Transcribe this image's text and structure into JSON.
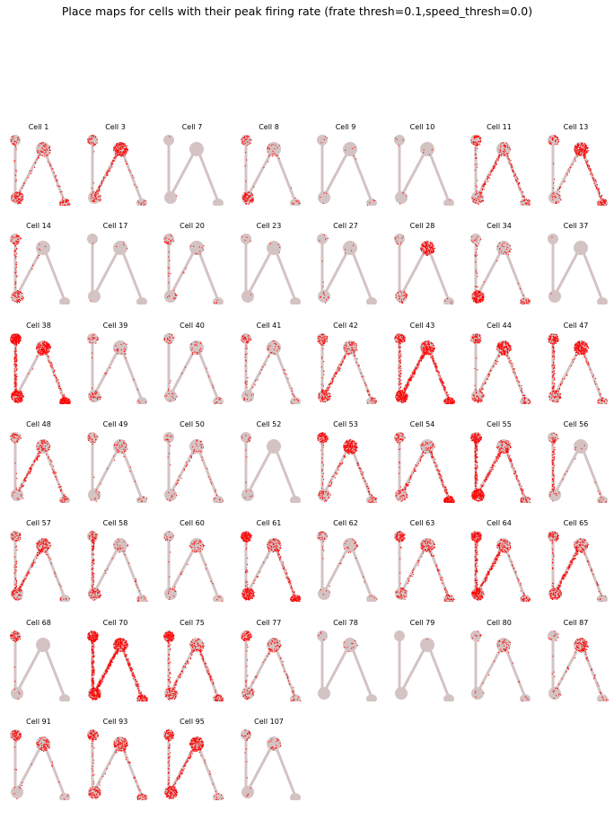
{
  "title": "Place maps for cells with their peak firing rate (frate thresh=0.1,speed_thresh=0.0)",
  "colors": {
    "track": "#d4c3c3",
    "spike": "#ff0000",
    "background": "#ffffff"
  },
  "chart_data": {
    "type": "scatter",
    "grid": false,
    "layout": {
      "rows": 7,
      "cols": 8
    },
    "panels": [
      {
        "title": "Cell 1",
        "intensity": {
          "left_top": 0.3,
          "left_arm": 0.2,
          "left_box": 0.6,
          "diag": 0.3,
          "top_box": 0.5,
          "right_arm": 0.3,
          "right_box": 0.5
        }
      },
      {
        "title": "Cell 3",
        "intensity": {
          "left_top": 0.4,
          "left_arm": 0.1,
          "left_box": 0.4,
          "diag": 0.6,
          "top_box": 0.9,
          "right_arm": 0.2,
          "right_box": 0.2
        }
      },
      {
        "title": "Cell 7",
        "intensity": {
          "left_top": 0.05,
          "left_arm": 0.0,
          "left_box": 0.05,
          "diag": 0.0,
          "top_box": 0.0,
          "right_arm": 0.0,
          "right_box": 0.0
        }
      },
      {
        "title": "Cell 8",
        "intensity": {
          "left_top": 0.4,
          "left_arm": 0.1,
          "left_box": 0.7,
          "diag": 0.1,
          "top_box": 0.3,
          "right_arm": 0.1,
          "right_box": 0.2
        }
      },
      {
        "title": "Cell 9",
        "intensity": {
          "left_top": 0.1,
          "left_arm": 0.0,
          "left_box": 0.1,
          "diag": 0.0,
          "top_box": 0.1,
          "right_arm": 0.05,
          "right_box": 0.1
        }
      },
      {
        "title": "Cell 10",
        "intensity": {
          "left_top": 0.1,
          "left_arm": 0.0,
          "left_box": 0.1,
          "diag": 0.0,
          "top_box": 0.1,
          "right_arm": 0.0,
          "right_box": 0.05
        }
      },
      {
        "title": "Cell 11",
        "intensity": {
          "left_top": 0.5,
          "left_arm": 0.3,
          "left_box": 0.4,
          "diag": 0.6,
          "top_box": 0.4,
          "right_arm": 0.5,
          "right_box": 0.3
        }
      },
      {
        "title": "Cell 13",
        "intensity": {
          "left_top": 0.4,
          "left_arm": 0.1,
          "left_box": 0.3,
          "diag": 0.3,
          "top_box": 0.9,
          "right_arm": 0.6,
          "right_box": 0.5
        }
      },
      {
        "title": "Cell 14",
        "intensity": {
          "left_top": 0.4,
          "left_arm": 0.4,
          "left_box": 0.5,
          "diag": 0.1,
          "top_box": 0.1,
          "right_arm": 0.0,
          "right_box": 0.0
        }
      },
      {
        "title": "Cell 17",
        "intensity": {
          "left_top": 0.05,
          "left_arm": 0.0,
          "left_box": 0.05,
          "diag": 0.0,
          "top_box": 0.1,
          "right_arm": 0.0,
          "right_box": 0.05
        }
      },
      {
        "title": "Cell 20",
        "intensity": {
          "left_top": 0.3,
          "left_arm": 0.2,
          "left_box": 0.2,
          "diag": 0.1,
          "top_box": 0.2,
          "right_arm": 0.0,
          "right_box": 0.1
        }
      },
      {
        "title": "Cell 23",
        "intensity": {
          "left_top": 0.1,
          "left_arm": 0.0,
          "left_box": 0.05,
          "diag": 0.0,
          "top_box": 0.1,
          "right_arm": 0.0,
          "right_box": 0.0
        }
      },
      {
        "title": "Cell 27",
        "intensity": {
          "left_top": 0.1,
          "left_arm": 0.1,
          "left_box": 0.2,
          "diag": 0.0,
          "top_box": 0.1,
          "right_arm": 0.0,
          "right_box": 0.0
        }
      },
      {
        "title": "Cell 28",
        "intensity": {
          "left_top": 0.2,
          "left_arm": 0.0,
          "left_box": 0.4,
          "diag": 0.0,
          "top_box": 0.9,
          "right_arm": 0.0,
          "right_box": 0.1
        }
      },
      {
        "title": "Cell 34",
        "intensity": {
          "left_top": 0.2,
          "left_arm": 0.3,
          "left_box": 0.9,
          "diag": 0.1,
          "top_box": 0.3,
          "right_arm": 0.1,
          "right_box": 0.4
        }
      },
      {
        "title": "Cell 37",
        "intensity": {
          "left_top": 0.05,
          "left_arm": 0.0,
          "left_box": 0.05,
          "diag": 0.0,
          "top_box": 0.0,
          "right_arm": 0.0,
          "right_box": 0.0
        }
      },
      {
        "title": "Cell 38",
        "intensity": {
          "left_top": 1.0,
          "left_arm": 0.8,
          "left_box": 1.0,
          "diag": 0.1,
          "top_box": 1.0,
          "right_arm": 0.5,
          "right_box": 1.0
        }
      },
      {
        "title": "Cell 39",
        "intensity": {
          "left_top": 0.3,
          "left_arm": 0.1,
          "left_box": 0.4,
          "diag": 0.1,
          "top_box": 0.3,
          "right_arm": 0.1,
          "right_box": 0.1
        }
      },
      {
        "title": "Cell 40",
        "intensity": {
          "left_top": 0.3,
          "left_arm": 0.1,
          "left_box": 0.2,
          "diag": 0.1,
          "top_box": 0.3,
          "right_arm": 0.1,
          "right_box": 0.2
        }
      },
      {
        "title": "Cell 41",
        "intensity": {
          "left_top": 0.4,
          "left_arm": 0.3,
          "left_box": 0.2,
          "diag": 0.2,
          "top_box": 0.3,
          "right_arm": 0.2,
          "right_box": 0.2
        }
      },
      {
        "title": "Cell 42",
        "intensity": {
          "left_top": 0.5,
          "left_arm": 0.3,
          "left_box": 0.6,
          "diag": 0.6,
          "top_box": 0.5,
          "right_arm": 0.3,
          "right_box": 0.3
        }
      },
      {
        "title": "Cell 43",
        "intensity": {
          "left_top": 0.6,
          "left_arm": 0.6,
          "left_box": 1.0,
          "diag": 0.9,
          "top_box": 0.9,
          "right_arm": 0.7,
          "right_box": 0.8
        }
      },
      {
        "title": "Cell 44",
        "intensity": {
          "left_top": 0.5,
          "left_arm": 0.2,
          "left_box": 0.5,
          "diag": 0.4,
          "top_box": 0.9,
          "right_arm": 0.4,
          "right_box": 0.4
        }
      },
      {
        "title": "Cell 47",
        "intensity": {
          "left_top": 0.6,
          "left_arm": 0.6,
          "left_box": 0.5,
          "diag": 0.3,
          "top_box": 1.0,
          "right_arm": 0.3,
          "right_box": 0.3
        }
      },
      {
        "title": "Cell 48",
        "intensity": {
          "left_top": 0.4,
          "left_arm": 0.1,
          "left_box": 0.2,
          "diag": 0.6,
          "top_box": 0.5,
          "right_arm": 0.4,
          "right_box": 0.3
        }
      },
      {
        "title": "Cell 49",
        "intensity": {
          "left_top": 0.3,
          "left_arm": 0.1,
          "left_box": 0.2,
          "diag": 0.1,
          "top_box": 0.4,
          "right_arm": 0.1,
          "right_box": 0.2
        }
      },
      {
        "title": "Cell 50",
        "intensity": {
          "left_top": 0.2,
          "left_arm": 0.1,
          "left_box": 0.2,
          "diag": 0.3,
          "top_box": 0.3,
          "right_arm": 0.2,
          "right_box": 0.2
        }
      },
      {
        "title": "Cell 52",
        "intensity": {
          "left_top": 0.2,
          "left_arm": 0.1,
          "left_box": 0.1,
          "diag": 0.0,
          "top_box": 0.0,
          "right_arm": 0.0,
          "right_box": 0.0
        }
      },
      {
        "title": "Cell 53",
        "intensity": {
          "left_top": 0.7,
          "left_arm": 0.3,
          "left_box": 0.4,
          "diag": 0.4,
          "top_box": 1.0,
          "right_arm": 0.4,
          "right_box": 0.3
        }
      },
      {
        "title": "Cell 54",
        "intensity": {
          "left_top": 0.4,
          "left_arm": 0.2,
          "left_box": 0.4,
          "diag": 0.5,
          "top_box": 0.4,
          "right_arm": 0.6,
          "right_box": 0.9
        }
      },
      {
        "title": "Cell 55",
        "intensity": {
          "left_top": 0.8,
          "left_arm": 0.8,
          "left_box": 1.0,
          "diag": 0.7,
          "top_box": 0.6,
          "right_arm": 0.5,
          "right_box": 0.4
        }
      },
      {
        "title": "Cell 56",
        "intensity": {
          "left_top": 0.3,
          "left_arm": 0.6,
          "left_box": 0.2,
          "diag": 0.1,
          "top_box": 0.1,
          "right_arm": 0.1,
          "right_box": 0.2
        }
      },
      {
        "title": "Cell 57",
        "intensity": {
          "left_top": 0.4,
          "left_arm": 0.4,
          "left_box": 0.5,
          "diag": 0.6,
          "top_box": 0.7,
          "right_arm": 0.2,
          "right_box": 0.2
        }
      },
      {
        "title": "Cell 58",
        "intensity": {
          "left_top": 0.4,
          "left_arm": 0.6,
          "left_box": 0.5,
          "diag": 0.1,
          "top_box": 0.3,
          "right_arm": 0.2,
          "right_box": 0.2
        }
      },
      {
        "title": "Cell 60",
        "intensity": {
          "left_top": 0.2,
          "left_arm": 0.1,
          "left_box": 0.2,
          "diag": 0.2,
          "top_box": 0.4,
          "right_arm": 0.1,
          "right_box": 0.1
        }
      },
      {
        "title": "Cell 61",
        "intensity": {
          "left_top": 0.9,
          "left_arm": 0.3,
          "left_box": 0.9,
          "diag": 0.2,
          "top_box": 0.6,
          "right_arm": 0.5,
          "right_box": 0.8
        }
      },
      {
        "title": "Cell 62",
        "intensity": {
          "left_top": 0.3,
          "left_arm": 0.1,
          "left_box": 0.1,
          "diag": 0.1,
          "top_box": 0.3,
          "right_arm": 0.1,
          "right_box": 0.1
        }
      },
      {
        "title": "Cell 63",
        "intensity": {
          "left_top": 0.6,
          "left_arm": 0.2,
          "left_box": 0.4,
          "diag": 0.3,
          "top_box": 0.6,
          "right_arm": 0.4,
          "right_box": 0.4
        }
      },
      {
        "title": "Cell 64",
        "intensity": {
          "left_top": 0.8,
          "left_arm": 0.7,
          "left_box": 0.8,
          "diag": 0.8,
          "top_box": 0.6,
          "right_arm": 0.3,
          "right_box": 0.4
        }
      },
      {
        "title": "Cell 65",
        "intensity": {
          "left_top": 0.5,
          "left_arm": 0.3,
          "left_box": 0.6,
          "diag": 0.8,
          "top_box": 0.6,
          "right_arm": 0.3,
          "right_box": 0.2
        }
      },
      {
        "title": "Cell 68",
        "intensity": {
          "left_top": 0.5,
          "left_arm": 0.1,
          "left_box": 0.1,
          "diag": 0.0,
          "top_box": 0.0,
          "right_arm": 0.0,
          "right_box": 0.0
        }
      },
      {
        "title": "Cell 70",
        "intensity": {
          "left_top": 0.9,
          "left_arm": 0.9,
          "left_box": 0.9,
          "diag": 1.0,
          "top_box": 1.0,
          "right_arm": 0.7,
          "right_box": 0.7
        }
      },
      {
        "title": "Cell 75",
        "intensity": {
          "left_top": 0.8,
          "left_arm": 0.4,
          "left_box": 0.6,
          "diag": 0.5,
          "top_box": 0.5,
          "right_arm": 0.5,
          "right_box": 0.5
        }
      },
      {
        "title": "Cell 77",
        "intensity": {
          "left_top": 0.6,
          "left_arm": 0.2,
          "left_box": 0.4,
          "diag": 0.2,
          "top_box": 0.5,
          "right_arm": 0.3,
          "right_box": 0.2
        }
      },
      {
        "title": "Cell 78",
        "intensity": {
          "left_top": 0.1,
          "left_arm": 0.0,
          "left_box": 0.0,
          "diag": 0.0,
          "top_box": 0.2,
          "right_arm": 0.0,
          "right_box": 0.0
        }
      },
      {
        "title": "Cell 79",
        "intensity": {
          "left_top": 0.0,
          "left_arm": 0.0,
          "left_box": 0.0,
          "diag": 0.0,
          "top_box": 0.05,
          "right_arm": 0.0,
          "right_box": 0.0
        }
      },
      {
        "title": "Cell 80",
        "intensity": {
          "left_top": 0.2,
          "left_arm": 0.0,
          "left_box": 0.1,
          "diag": 0.1,
          "top_box": 0.4,
          "right_arm": 0.1,
          "right_box": 0.1
        }
      },
      {
        "title": "Cell 87",
        "intensity": {
          "left_top": 0.2,
          "left_arm": 0.1,
          "left_box": 0.2,
          "diag": 0.2,
          "top_box": 0.7,
          "right_arm": 0.3,
          "right_box": 0.2
        }
      },
      {
        "title": "Cell 91",
        "intensity": {
          "left_top": 0.6,
          "left_arm": 0.1,
          "left_box": 0.1,
          "diag": 0.1,
          "top_box": 0.6,
          "right_arm": 0.1,
          "right_box": 0.1
        }
      },
      {
        "title": "Cell 93",
        "intensity": {
          "left_top": 0.6,
          "left_arm": 0.3,
          "left_box": 0.6,
          "diag": 0.2,
          "top_box": 0.7,
          "right_arm": 0.3,
          "right_box": 0.4
        }
      },
      {
        "title": "Cell 95",
        "intensity": {
          "left_top": 0.6,
          "left_arm": 0.4,
          "left_box": 0.8,
          "diag": 0.6,
          "top_box": 0.9,
          "right_arm": 0.2,
          "right_box": 0.2
        }
      },
      {
        "title": "Cell 107",
        "intensity": {
          "left_top": 0.3,
          "left_arm": 0.1,
          "left_box": 0.1,
          "diag": 0.0,
          "top_box": 0.3,
          "right_arm": 0.0,
          "right_box": 0.0
        }
      }
    ]
  }
}
